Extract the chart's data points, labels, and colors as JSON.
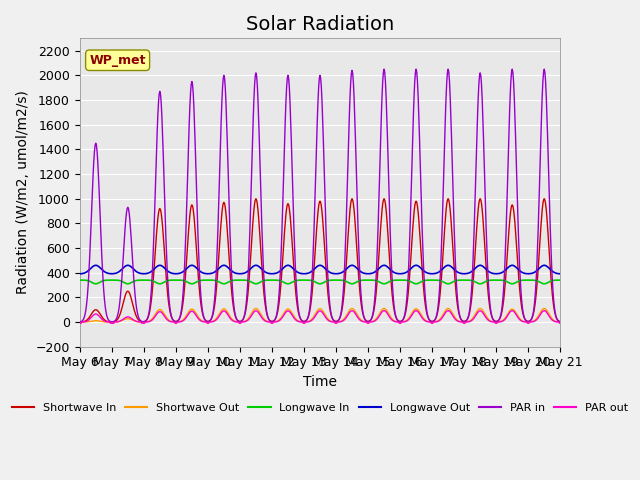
{
  "title": "Solar Radiation",
  "xlabel": "Time",
  "ylabel": "Radiation (W/m2, umol/m2/s)",
  "ylim": [
    -200,
    2300
  ],
  "yticks": [
    -200,
    0,
    200,
    400,
    600,
    800,
    1000,
    1200,
    1400,
    1600,
    1800,
    2000,
    2200
  ],
  "start_day": 6,
  "end_day": 21,
  "colors": {
    "shortwave_in": "#cc0000",
    "shortwave_out": "#ff9900",
    "longwave_in": "#00cc00",
    "longwave_out": "#0000cc",
    "par_in": "#9900cc",
    "par_out": "#ff00cc"
  },
  "legend_labels": [
    "Shortwave In",
    "Shortwave Out",
    "Longwave In",
    "Longwave Out",
    "PAR in",
    "PAR out"
  ],
  "watermark_text": "WP_met",
  "watermark_color": "#8b0000",
  "watermark_bg": "#ffff99",
  "background_color": "#e8e8e8",
  "grid_color": "#ffffff",
  "title_fontsize": 14,
  "axis_fontsize": 10,
  "tick_fontsize": 9
}
